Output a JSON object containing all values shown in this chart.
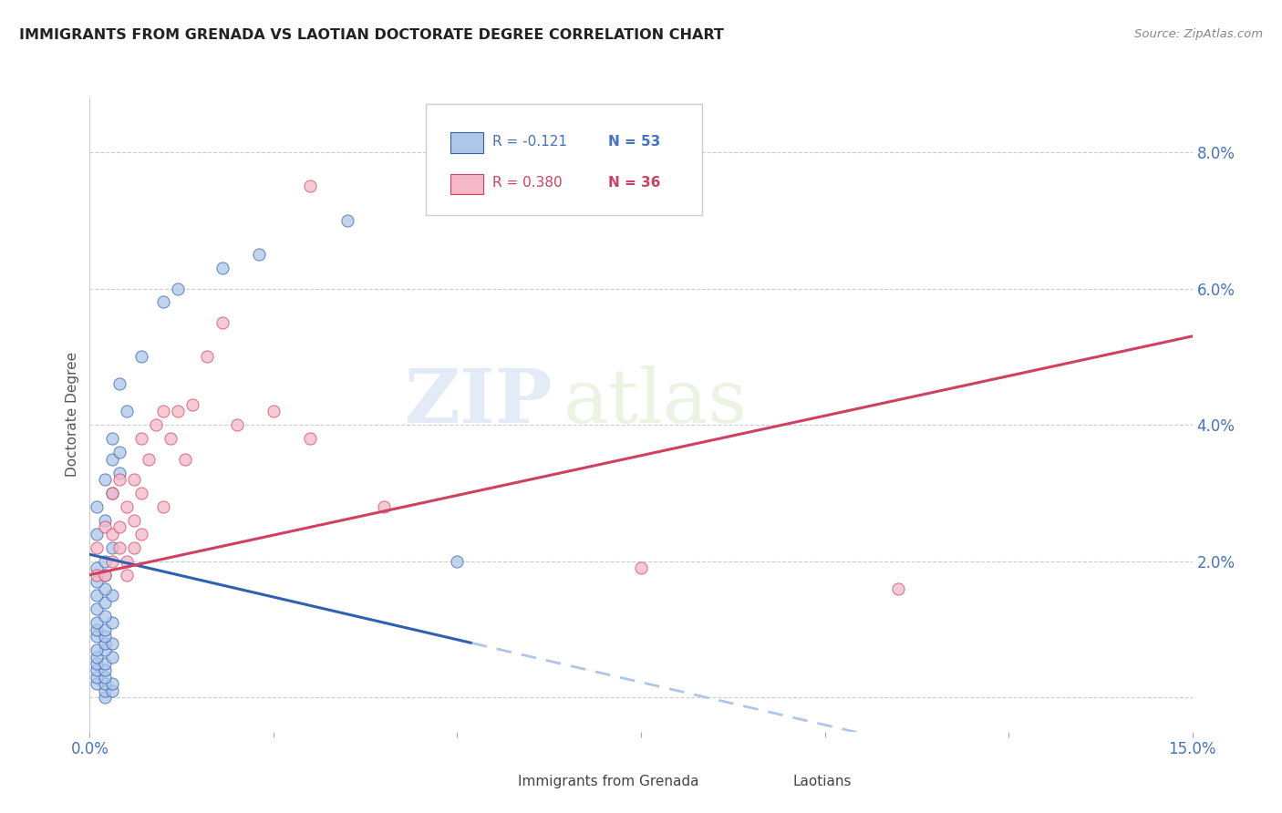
{
  "title": "IMMIGRANTS FROM GRENADA VS LAOTIAN DOCTORATE DEGREE CORRELATION CHART",
  "source": "Source: ZipAtlas.com",
  "ylabel": "Doctorate Degree",
  "xlim": [
    0.0,
    0.15
  ],
  "ylim": [
    -0.005,
    0.088
  ],
  "blue_color": "#aec6e8",
  "pink_color": "#f4b8c8",
  "blue_line_color": "#3060b0",
  "pink_line_color": "#d04060",
  "dashed_line_color": "#aec6e8",
  "watermark_zip": "ZIP",
  "watermark_atlas": "atlas",
  "blue_scatter_x": [
    0.002,
    0.002,
    0.003,
    0.001,
    0.002,
    0.003,
    0.001,
    0.002,
    0.001,
    0.002,
    0.001,
    0.002,
    0.001,
    0.003,
    0.002,
    0.001,
    0.002,
    0.003,
    0.001,
    0.002,
    0.001,
    0.002,
    0.003,
    0.001,
    0.002,
    0.001,
    0.002,
    0.001,
    0.003,
    0.002,
    0.001,
    0.002,
    0.001,
    0.002,
    0.003,
    0.001,
    0.002,
    0.001,
    0.003,
    0.002,
    0.004,
    0.003,
    0.004,
    0.003,
    0.005,
    0.004,
    0.007,
    0.01,
    0.012,
    0.018,
    0.023,
    0.035,
    0.05
  ],
  "blue_scatter_y": [
    0.0,
    0.001,
    0.001,
    0.002,
    0.002,
    0.002,
    0.003,
    0.003,
    0.004,
    0.004,
    0.005,
    0.005,
    0.006,
    0.006,
    0.007,
    0.007,
    0.008,
    0.008,
    0.009,
    0.009,
    0.01,
    0.01,
    0.011,
    0.011,
    0.012,
    0.013,
    0.014,
    0.015,
    0.015,
    0.016,
    0.017,
    0.018,
    0.019,
    0.02,
    0.022,
    0.024,
    0.026,
    0.028,
    0.03,
    0.032,
    0.033,
    0.035,
    0.036,
    0.038,
    0.042,
    0.046,
    0.05,
    0.058,
    0.06,
    0.063,
    0.065,
    0.07,
    0.02
  ],
  "pink_scatter_x": [
    0.001,
    0.001,
    0.002,
    0.002,
    0.003,
    0.003,
    0.003,
    0.004,
    0.004,
    0.004,
    0.005,
    0.005,
    0.005,
    0.006,
    0.006,
    0.006,
    0.007,
    0.007,
    0.007,
    0.008,
    0.009,
    0.01,
    0.01,
    0.011,
    0.012,
    0.013,
    0.014,
    0.016,
    0.018,
    0.02,
    0.025,
    0.03,
    0.04,
    0.075,
    0.11,
    0.03
  ],
  "pink_scatter_y": [
    0.018,
    0.022,
    0.018,
    0.025,
    0.02,
    0.024,
    0.03,
    0.022,
    0.025,
    0.032,
    0.018,
    0.02,
    0.028,
    0.022,
    0.026,
    0.032,
    0.024,
    0.03,
    0.038,
    0.035,
    0.04,
    0.042,
    0.028,
    0.038,
    0.042,
    0.035,
    0.043,
    0.05,
    0.055,
    0.04,
    0.042,
    0.038,
    0.028,
    0.019,
    0.016,
    0.075
  ],
  "blue_line_x0": 0.0,
  "blue_line_x1": 0.052,
  "blue_line_y0": 0.021,
  "blue_line_y1": 0.008,
  "pink_line_x0": 0.0,
  "pink_line_x1": 0.15,
  "pink_line_y0": 0.018,
  "pink_line_y1": 0.053
}
